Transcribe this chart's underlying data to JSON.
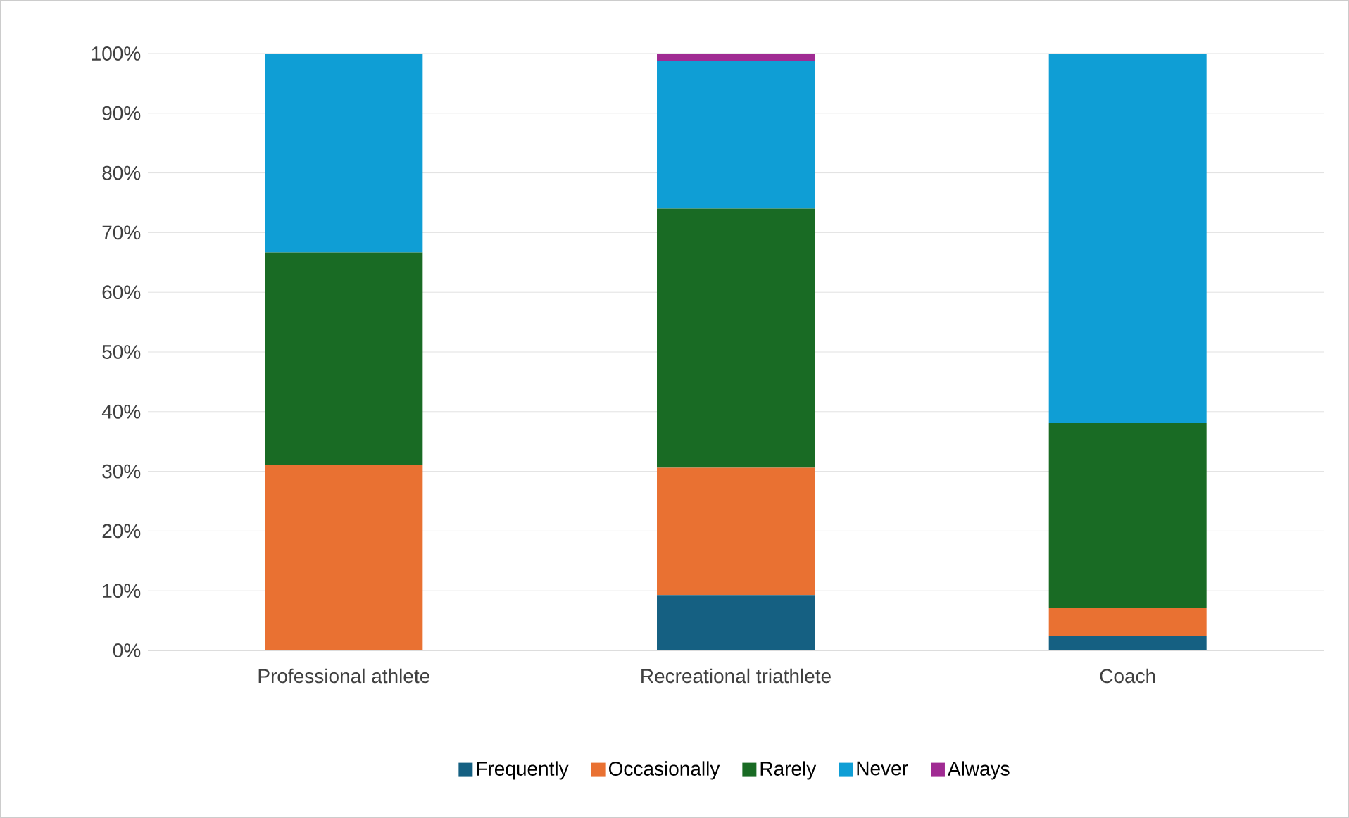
{
  "chart_data": {
    "type": "bar",
    "stacked": true,
    "categories": [
      "Professional athlete",
      "Recreational triathlete",
      "Coach"
    ],
    "series": [
      {
        "name": "Frequently",
        "color": "#156082",
        "values": [
          0,
          9.3,
          2.4
        ]
      },
      {
        "name": "Occasionally",
        "color": "#e97132",
        "values": [
          31,
          21.3,
          4.7
        ]
      },
      {
        "name": "Rarely",
        "color": "#196b24",
        "values": [
          35.7,
          43.4,
          31
        ]
      },
      {
        "name": "Never",
        "color": "#0f9ed5",
        "values": [
          33.3,
          24.7,
          61.9
        ]
      },
      {
        "name": "Always",
        "color": "#a02b93",
        "values": [
          0,
          1.3,
          0
        ]
      }
    ],
    "ylim": [
      0,
      100
    ],
    "yticks": [
      {
        "value": 0,
        "label": "0%"
      },
      {
        "value": 10,
        "label": "10%"
      },
      {
        "value": 20,
        "label": "20%"
      },
      {
        "value": 30,
        "label": "30%"
      },
      {
        "value": 40,
        "label": "40%"
      },
      {
        "value": 50,
        "label": "50%"
      },
      {
        "value": 60,
        "label": "60%"
      },
      {
        "value": 70,
        "label": "70%"
      },
      {
        "value": 80,
        "label": "80%"
      },
      {
        "value": 90,
        "label": "90%"
      },
      {
        "value": 100,
        "label": "100%"
      }
    ],
    "grid": "y",
    "legend": "bottom"
  }
}
